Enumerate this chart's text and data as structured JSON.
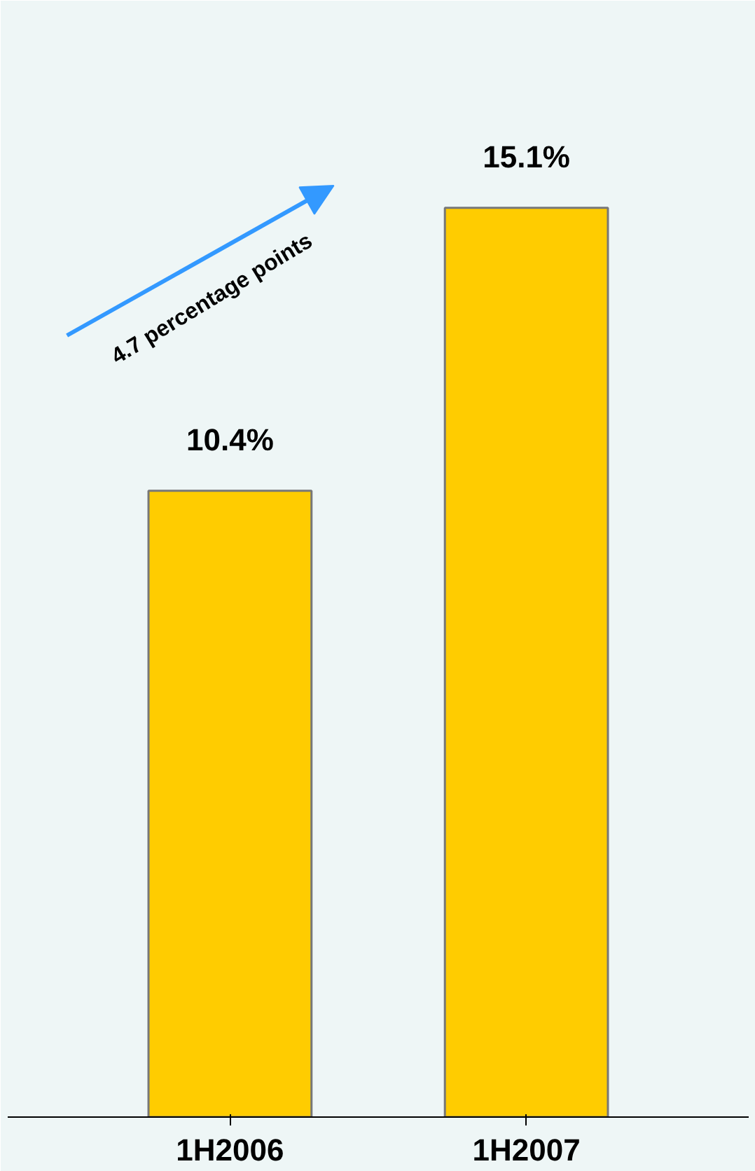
{
  "chart_data": {
    "type": "bar",
    "categories": [
      "1H2006",
      "1H2007"
    ],
    "values": [
      10.4,
      15.1
    ],
    "value_labels": [
      "10.4%",
      "15.1%"
    ],
    "color": "#ffcc00",
    "annotations": [
      "4.7 percentage points"
    ],
    "grid": false,
    "tick_labels": "x"
  }
}
